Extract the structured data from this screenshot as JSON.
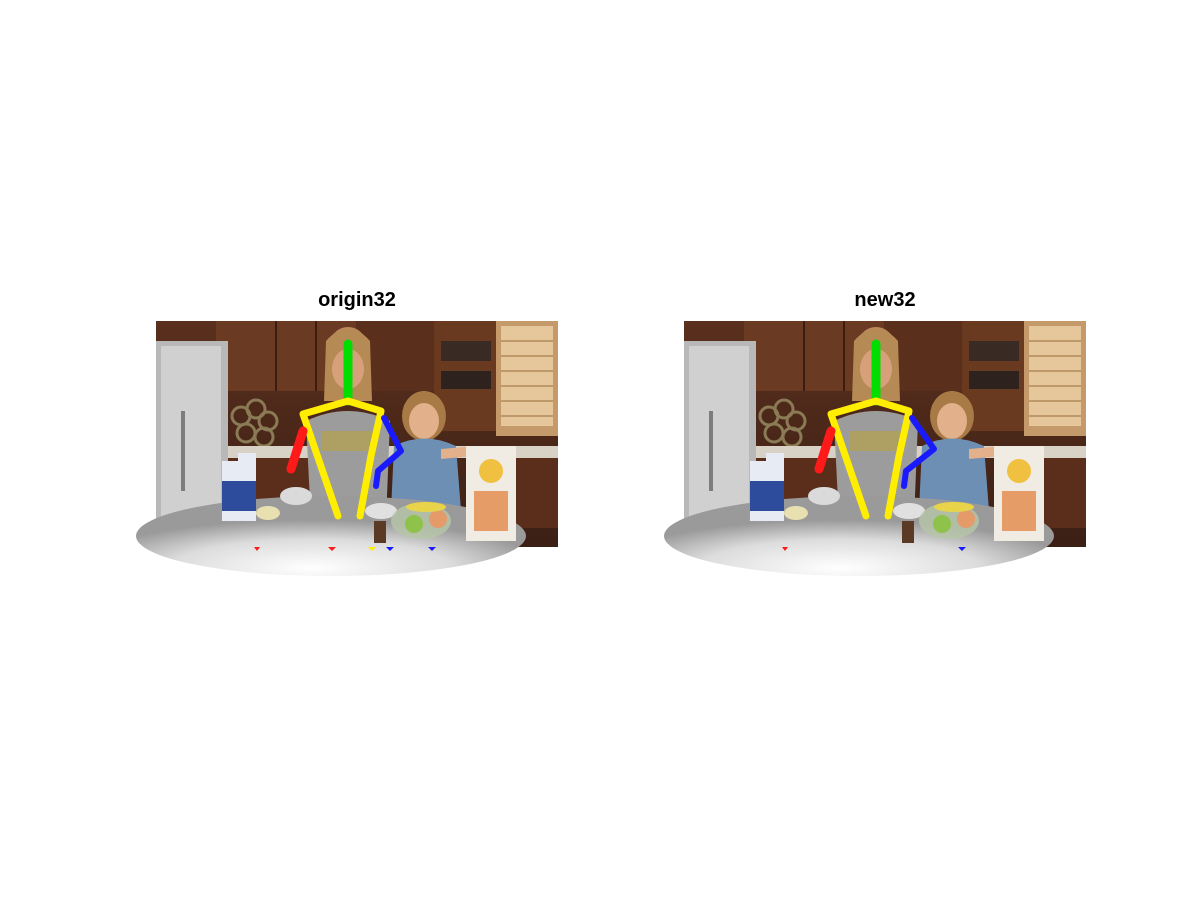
{
  "panels": [
    {
      "title": "origin32",
      "colors": {
        "head": "#00dd00",
        "torso": "#ffee00",
        "right_arm": "#ff1a1a",
        "left_arm": "#1a1aff"
      }
    },
    {
      "title": "new32",
      "colors": {
        "head": "#00dd00",
        "torso": "#ffee00",
        "right_arm": "#ff1a1a",
        "left_arm": "#1a1aff"
      }
    }
  ]
}
